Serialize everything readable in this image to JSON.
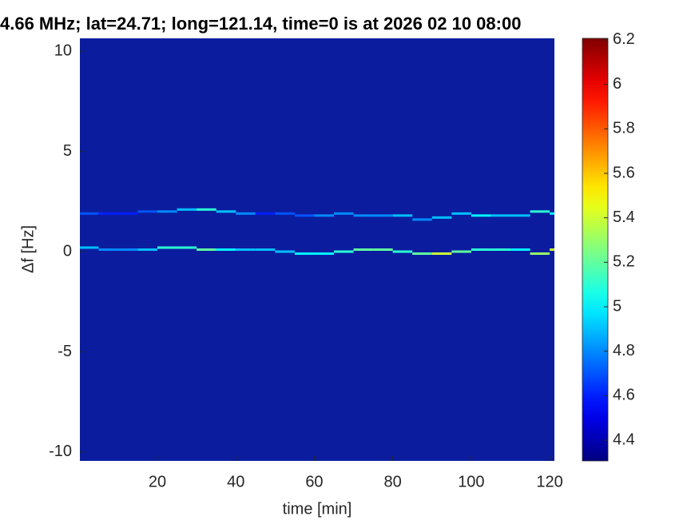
{
  "chart_data": {
    "type": "heatmap",
    "title": "4.66 MHz;  lat=24.71; long=121.14, time=0 is at 2026 02 10 08:00",
    "x_label": "time [min]",
    "y_label": "Δf [Hz]",
    "xlim": [
      0.25,
      121.2
    ],
    "xticks": [
      20,
      40,
      60,
      80,
      100,
      120
    ],
    "ylim": [
      -10.44,
      10.64
    ],
    "yticks": [
      -10,
      -5,
      0,
      5,
      10
    ],
    "clim": [
      4.307,
      6.207
    ],
    "cticks": [
      4.4,
      4.6,
      4.8,
      5,
      5.2,
      5.4,
      5.6,
      5.8,
      6,
      6.2
    ],
    "colormap": "jet",
    "background_color": "#0b1d9e",
    "series": [
      {
        "name": "upper trace",
        "x": [
          0,
          5,
          10,
          15,
          20,
          25,
          30,
          35,
          40,
          45,
          50,
          55,
          60,
          65,
          70,
          75,
          80,
          85,
          90,
          95,
          100,
          105,
          110,
          115,
          120
        ],
        "y": [
          1.9,
          1.9,
          1.9,
          2.0,
          2.0,
          2.1,
          2.1,
          2.0,
          1.9,
          1.9,
          1.9,
          1.8,
          1.8,
          1.9,
          1.8,
          1.8,
          1.8,
          1.6,
          1.7,
          1.9,
          1.8,
          1.8,
          1.8,
          2.0,
          1.9
        ],
        "values": [
          4.7,
          4.6,
          4.6,
          4.7,
          4.8,
          4.9,
          5.1,
          4.9,
          4.8,
          4.6,
          4.7,
          4.7,
          4.8,
          4.8,
          4.8,
          4.8,
          4.9,
          4.8,
          4.9,
          4.9,
          5.0,
          4.9,
          4.9,
          5.1,
          5.0
        ]
      },
      {
        "name": "lower trace",
        "x": [
          0,
          5,
          10,
          15,
          20,
          25,
          30,
          35,
          40,
          45,
          50,
          55,
          60,
          65,
          70,
          75,
          80,
          85,
          90,
          95,
          100,
          105,
          110,
          115,
          120
        ],
        "y": [
          0.2,
          0.1,
          0.1,
          0.1,
          0.2,
          0.2,
          0.1,
          0.1,
          0.1,
          0.1,
          0.0,
          -0.1,
          -0.1,
          0.0,
          0.1,
          0.1,
          0.0,
          -0.1,
          -0.1,
          0.0,
          0.1,
          0.1,
          0.1,
          -0.1,
          0.1
        ],
        "values": [
          4.9,
          4.8,
          4.8,
          4.9,
          5.1,
          5.1,
          5.2,
          5.0,
          4.9,
          4.9,
          4.9,
          5.0,
          5.0,
          5.1,
          5.2,
          5.2,
          5.1,
          5.2,
          5.4,
          5.2,
          5.1,
          5.1,
          5.0,
          5.3,
          5.4
        ]
      }
    ]
  }
}
